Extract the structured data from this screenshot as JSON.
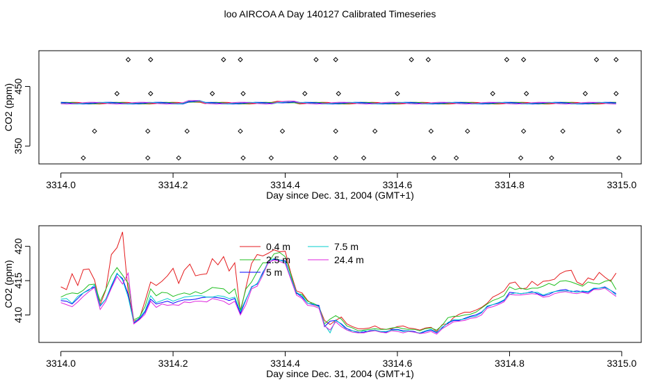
{
  "figure": {
    "title": "loo AIRCOA A  Day 140127  Calibrated Timeseries"
  },
  "chart_data": [
    {
      "type": "scatter+line",
      "title": "",
      "xlabel": "Day since Dec. 31, 2004 (GMT+1)",
      "ylabel": "CO2 (ppm)",
      "xlim": [
        3314.0,
        3315.0
      ],
      "ylim": [
        320,
        510
      ],
      "xticks": [
        "3314.0",
        "3314.2",
        "3314.4",
        "3314.6",
        "3314.8",
        "3315.0"
      ],
      "yticks": [
        "350",
        "450"
      ],
      "yticks_values": [
        350,
        450
      ],
      "calibration_points": {
        "x": [
          3314.04,
          3314.06,
          3314.12,
          3314.1,
          3314.16,
          3314.155,
          3314.16,
          3314.155,
          3314.21,
          3314.225,
          3314.27,
          3314.29,
          3314.32,
          3314.325,
          3314.32,
          3314.325,
          3314.375,
          3314.395,
          3314.435,
          3314.455,
          3314.49,
          3314.495,
          3314.49,
          3314.49,
          3314.54,
          3314.56,
          3314.625,
          3314.6,
          3314.655,
          3314.66,
          3314.665,
          3314.705,
          3314.725,
          3314.77,
          3314.795,
          3314.825,
          3314.83,
          3314.825,
          3314.82,
          3314.875,
          3314.895,
          3314.935,
          3314.955,
          3314.99,
          3314.99,
          3314.995,
          3314.995
        ],
        "y": [
          330,
          375,
          495,
          438,
          495,
          375,
          438,
          330,
          330,
          375,
          438,
          495,
          495,
          438,
          375,
          330,
          330,
          375,
          438,
          495,
          495,
          438,
          375,
          330,
          330,
          375,
          495,
          438,
          495,
          375,
          330,
          330,
          375,
          438,
          495,
          495,
          438,
          375,
          330,
          330,
          375,
          438,
          495,
          495,
          438,
          375,
          330
        ]
      },
      "series_flat_level": 422
    },
    {
      "type": "line",
      "title": "",
      "xlabel": "Day since Dec. 31, 2004 (GMT+1)",
      "ylabel": "CO2 (ppm)",
      "xlim": [
        3314.0,
        3315.0
      ],
      "ylim": [
        406,
        423
      ],
      "xticks": [
        "3314.0",
        "3314.2",
        "3314.4",
        "3314.6",
        "3314.8",
        "3315.0"
      ],
      "yticks": [
        "410",
        "415",
        "420"
      ],
      "yticks_values": [
        410,
        415,
        420
      ],
      "legend": {
        "position": "top-center"
      },
      "x": [
        3314.0,
        3314.01,
        3314.02,
        3314.03,
        3314.04,
        3314.05,
        3314.06,
        3314.07,
        3314.08,
        3314.09,
        3314.1,
        3314.11,
        3314.12,
        3314.13,
        3314.14,
        3314.15,
        3314.16,
        3314.17,
        3314.18,
        3314.19,
        3314.2,
        3314.21,
        3314.22,
        3314.23,
        3314.24,
        3314.25,
        3314.26,
        3314.27,
        3314.28,
        3314.29,
        3314.3,
        3314.31,
        3314.32,
        3314.33,
        3314.34,
        3314.35,
        3314.36,
        3314.37,
        3314.38,
        3314.39,
        3314.4,
        3314.41,
        3314.42,
        3314.43,
        3314.44,
        3314.45,
        3314.46,
        3314.47,
        3314.48,
        3314.49,
        3314.5,
        3314.51,
        3314.52,
        3314.53,
        3314.54,
        3314.55,
        3314.56,
        3314.57,
        3314.58,
        3314.59,
        3314.6,
        3314.61,
        3314.62,
        3314.63,
        3314.64,
        3314.65,
        3314.66,
        3314.67,
        3314.68,
        3314.69,
        3314.7,
        3314.71,
        3314.72,
        3314.73,
        3314.74,
        3314.75,
        3314.76,
        3314.77,
        3314.78,
        3314.79,
        3314.8,
        3314.81,
        3314.82,
        3314.83,
        3314.84,
        3314.85,
        3314.86,
        3314.87,
        3314.88,
        3314.89,
        3314.9,
        3314.91,
        3314.92,
        3314.93,
        3314.94,
        3314.95,
        3314.96,
        3314.97,
        3314.98,
        3314.99
      ],
      "series": [
        {
          "name": "0.4 m",
          "color": "#e41a1c",
          "values": [
            414.1,
            413.7,
            416.0,
            414.3,
            416.6,
            416.7,
            415.1,
            411.5,
            413.6,
            418.8,
            419.8,
            422.1,
            413.3,
            409.1,
            409.5,
            412.0,
            414.8,
            414.3,
            414.9,
            415.7,
            416.8,
            414.6,
            416.5,
            417.4,
            415.7,
            415.9,
            416.0,
            418.2,
            417.3,
            418.5,
            416.4,
            417.6,
            410.4,
            414.0,
            417.5,
            418.8,
            418.6,
            419.0,
            419.5,
            419.2,
            419.3,
            416.1,
            413.5,
            413.2,
            412.1,
            411.5,
            411.2,
            409.2,
            408.6,
            409.2,
            409.7,
            408.7,
            408.3,
            408.0,
            408.0,
            408.1,
            408.4,
            408.0,
            407.9,
            408.0,
            408.3,
            408.4,
            408.1,
            408.0,
            407.8,
            408.1,
            408.2,
            407.6,
            408.6,
            408.7,
            409.6,
            410.1,
            410.4,
            410.4,
            410.7,
            411.1,
            411.7,
            412.6,
            413.0,
            413.5,
            414.6,
            414.8,
            413.8,
            413.9,
            414.9,
            414.3,
            414.9,
            415.0,
            415.2,
            416.0,
            416.4,
            416.5,
            414.8,
            414.4,
            415.4,
            415.1,
            416.2,
            415.5,
            414.9,
            416.1
          ]
        },
        {
          "name": "2.5 m",
          "color": "#1fbf1f",
          "values": [
            412.6,
            413.0,
            413.2,
            413.1,
            413.6,
            414.4,
            414.5,
            412.0,
            413.7,
            415.7,
            416.9,
            415.8,
            414.6,
            409.3,
            409.7,
            411.2,
            413.8,
            412.8,
            413.3,
            413.2,
            412.7,
            413.0,
            413.2,
            413.0,
            413.4,
            413.1,
            413.5,
            414.0,
            413.9,
            413.8,
            413.1,
            413.8,
            410.7,
            413.8,
            414.8,
            416.3,
            417.6,
            417.6,
            418.9,
            419.1,
            418.5,
            415.9,
            413.1,
            413.0,
            412.0,
            411.7,
            411.3,
            408.7,
            409.4,
            409.9,
            409.4,
            408.4,
            408.1,
            407.7,
            407.8,
            407.9,
            408.0,
            407.9,
            407.9,
            408.1,
            408.2,
            408.0,
            407.9,
            407.9,
            407.7,
            408.0,
            408.1,
            407.8,
            408.5,
            409.6,
            409.8,
            409.8,
            410.0,
            410.1,
            410.4,
            411.0,
            411.6,
            412.1,
            412.4,
            412.8,
            414.1,
            413.7,
            413.9,
            413.7,
            413.9,
            413.9,
            414.2,
            414.6,
            414.3,
            414.9,
            415.0,
            414.8,
            414.5,
            414.2,
            414.8,
            414.6,
            414.5,
            414.9,
            415.1,
            413.7
          ]
        },
        {
          "name": "5 m",
          "color": "#0000ff",
          "values": [
            412.1,
            412.0,
            411.6,
            412.4,
            413.2,
            413.7,
            414.1,
            411.3,
            412.3,
            414.1,
            416.0,
            415.3,
            413.0,
            408.8,
            409.4,
            410.4,
            412.3,
            411.6,
            411.8,
            412.0,
            411.7,
            412.0,
            412.2,
            412.2,
            412.3,
            412.5,
            412.6,
            412.6,
            412.5,
            412.4,
            412.1,
            412.4,
            410.2,
            412.2,
            414.1,
            414.5,
            416.2,
            417.6,
            418.1,
            418.0,
            417.9,
            415.4,
            413.2,
            412.6,
            411.7,
            411.5,
            411.4,
            408.3,
            409.1,
            409.2,
            408.7,
            408.0,
            407.7,
            407.5,
            407.5,
            407.7,
            407.8,
            407.6,
            407.5,
            407.9,
            407.9,
            407.7,
            407.7,
            407.6,
            407.3,
            407.6,
            407.8,
            407.4,
            408.2,
            408.8,
            409.2,
            409.2,
            409.5,
            409.8,
            410.0,
            410.4,
            411.2,
            411.5,
            411.7,
            412.1,
            413.3,
            413.2,
            413.1,
            413.2,
            413.4,
            413.1,
            412.8,
            413.0,
            413.4,
            413.6,
            413.7,
            413.4,
            413.5,
            413.4,
            413.3,
            413.8,
            413.9,
            414.1,
            413.6,
            413.1
          ]
        },
        {
          "name": "7.5 m",
          "color": "#00cccc",
          "values": [
            412.3,
            412.4,
            411.7,
            412.7,
            413.2,
            413.6,
            414.4,
            411.4,
            412.3,
            414.3,
            416.1,
            415.1,
            412.6,
            408.9,
            409.6,
            410.6,
            412.8,
            411.8,
            412.1,
            412.4,
            412.0,
            412.3,
            412.6,
            412.7,
            412.8,
            412.8,
            412.6,
            412.6,
            412.8,
            412.7,
            412.4,
            412.6,
            410.5,
            412.3,
            414.0,
            414.6,
            416.0,
            417.9,
            418.2,
            418.0,
            417.7,
            415.5,
            413.3,
            412.8,
            411.7,
            411.6,
            411.2,
            408.6,
            407.4,
            409.3,
            408.6,
            407.8,
            407.7,
            407.4,
            407.7,
            407.6,
            407.8,
            407.6,
            407.6,
            407.8,
            407.8,
            407.6,
            407.7,
            407.5,
            407.4,
            407.7,
            407.9,
            407.5,
            408.1,
            408.9,
            409.3,
            409.3,
            409.4,
            409.7,
            409.8,
            410.3,
            411.3,
            411.5,
            411.8,
            412.2,
            413.0,
            413.2,
            413.1,
            413.2,
            413.3,
            413.3,
            412.9,
            413.2,
            413.4,
            413.5,
            413.5,
            413.5,
            413.3,
            413.5,
            413.4,
            413.9,
            413.9,
            414.0,
            413.6,
            412.9
          ]
        },
        {
          "name": "24.4 m",
          "color": "#dd22dd",
          "values": [
            411.8,
            411.5,
            411.2,
            411.9,
            412.7,
            413.4,
            414.0,
            410.8,
            412.0,
            413.9,
            415.6,
            414.5,
            416.1,
            408.7,
            409.3,
            410.1,
            412.0,
            411.1,
            411.6,
            411.4,
            411.5,
            411.4,
            411.9,
            411.8,
            412.0,
            412.0,
            411.9,
            412.4,
            412.2,
            412.0,
            411.5,
            412.0,
            410.0,
            411.5,
            413.8,
            414.2,
            415.8,
            417.7,
            418.0,
            417.8,
            417.5,
            415.2,
            412.9,
            412.4,
            411.4,
            411.3,
            411.0,
            408.4,
            407.8,
            409.0,
            408.3,
            407.8,
            407.5,
            407.4,
            407.4,
            407.6,
            407.7,
            407.5,
            407.4,
            407.7,
            407.6,
            407.4,
            407.6,
            407.5,
            407.3,
            407.4,
            407.6,
            407.2,
            408.0,
            408.5,
            409.0,
            409.1,
            409.2,
            409.5,
            409.6,
            410.0,
            411.0,
            411.2,
            411.5,
            411.9,
            413.0,
            412.9,
            412.9,
            413.0,
            413.1,
            413.0,
            412.6,
            412.7,
            413.1,
            413.3,
            413.4,
            413.2,
            413.1,
            413.3,
            413.1,
            413.7,
            413.7,
            413.9,
            413.3,
            412.7
          ]
        }
      ]
    }
  ]
}
